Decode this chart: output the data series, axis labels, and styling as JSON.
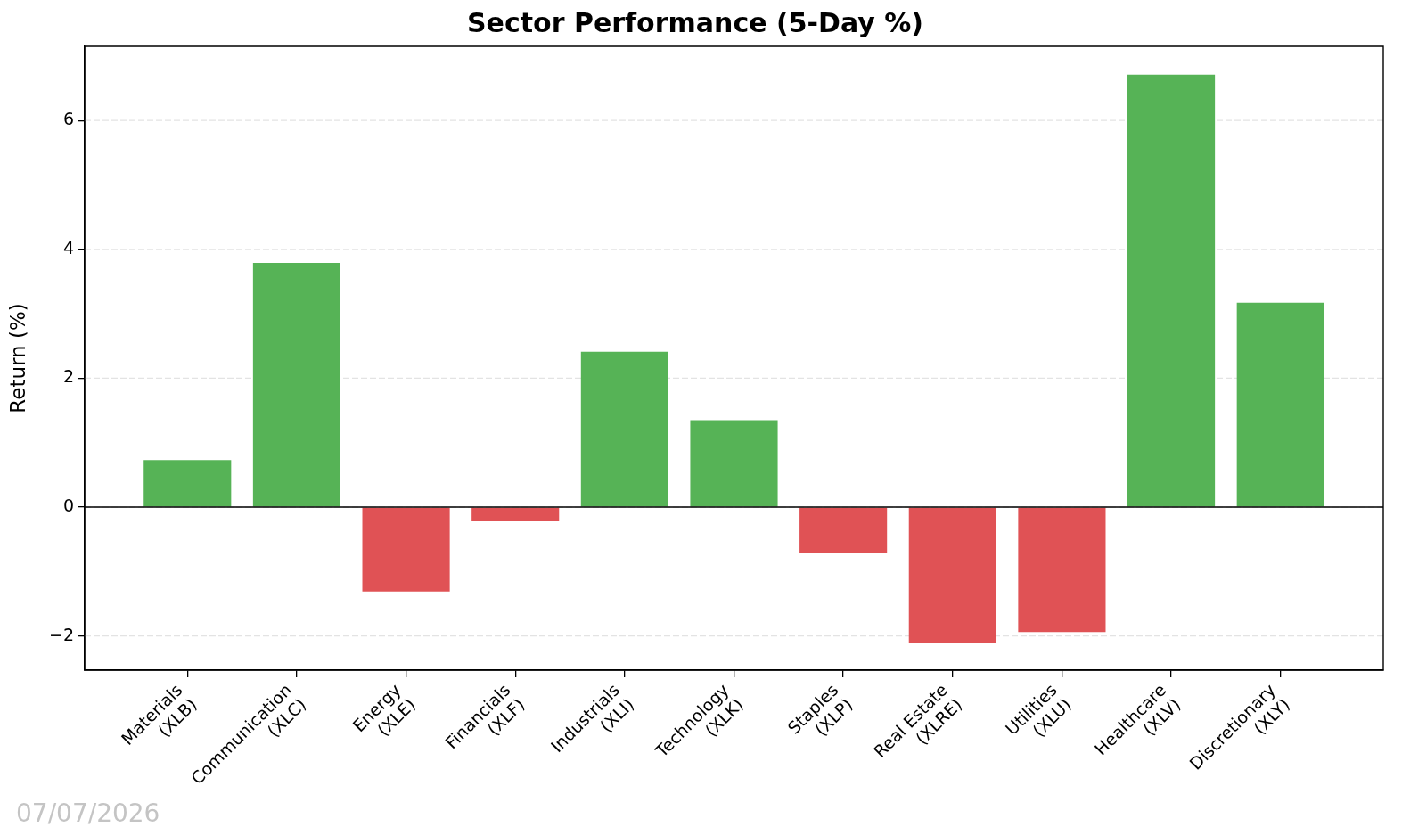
{
  "chart_data": {
    "type": "bar",
    "title": "Sector Performance (5-Day %)",
    "ylabel": "Return (%)",
    "categories": [
      "Materials\n(XLB)",
      "Communication\n(XLC)",
      "Energy\n(XLE)",
      "Financials\n(XLF)",
      "Industrials\n(XLI)",
      "Technology\n(XLK)",
      "Staples\n(XLP)",
      "Real Estate\n(XLRE)",
      "Utilities\n(XLU)",
      "Healthcare\n(XLV)",
      "Discretionary\n(XLY)"
    ],
    "values": [
      0.73,
      3.79,
      -1.31,
      -0.22,
      2.41,
      1.35,
      -0.71,
      -2.1,
      -1.94,
      6.71,
      3.17
    ],
    "colors": [
      "#56b356",
      "#56b356",
      "#e05255",
      "#e05255",
      "#56b356",
      "#56b356",
      "#e05255",
      "#e05255",
      "#e05255",
      "#56b356",
      "#56b356"
    ],
    "ylim": [
      -2.53,
      7.15
    ],
    "yticks": [
      {
        "value": -2,
        "label": "−2"
      },
      0,
      2,
      4,
      6
    ],
    "grid": "y",
    "ref_lines": [
      {
        "axis": "y",
        "value": 0,
        "color": "#000000"
      }
    ],
    "annotations": [
      "07/07/2026"
    ]
  }
}
